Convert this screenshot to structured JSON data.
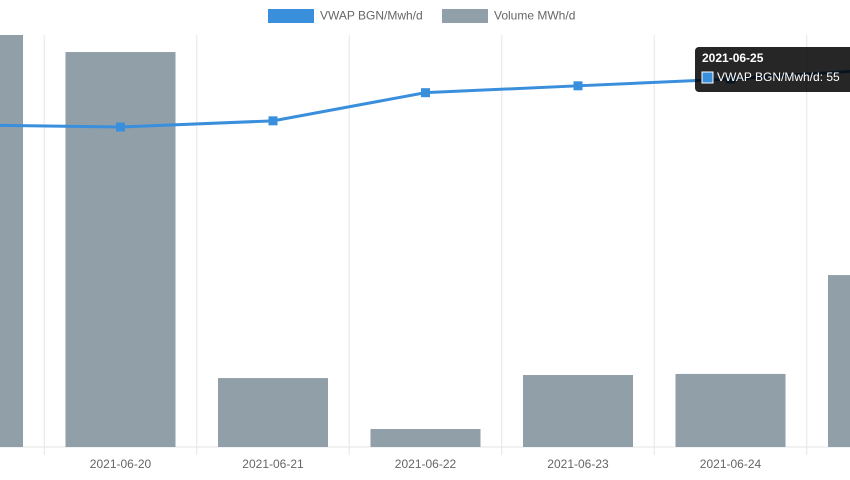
{
  "chart_data": {
    "type": "bar-line",
    "categories": [
      null,
      "2021-06-20",
      "2021-06-21",
      "2021-06-22",
      "2021-06-23",
      "2021-06-24",
      null
    ],
    "series": [
      {
        "name": "VWAP BGN/Mwh/d",
        "type": "line",
        "color": "#3a8fdd",
        "values": [
          46.9,
          46.6,
          47.5,
          51.6,
          52.6,
          53.6,
          55
        ]
      },
      {
        "name": "Volume MWh/d",
        "type": "bar",
        "axis": "y2",
        "color": "#919fa9",
        "values": [
          3000,
          2876,
          502,
          131,
          524,
          532,
          1252
        ]
      }
    ],
    "ylim": [
      0,
      60
    ],
    "y2lim": [
      0,
      3000
    ],
    "grid": true,
    "legend": "top",
    "tooltip": {
      "title": "2021-06-25",
      "text": "VWAP BGN/Mwh/d: 55"
    }
  }
}
